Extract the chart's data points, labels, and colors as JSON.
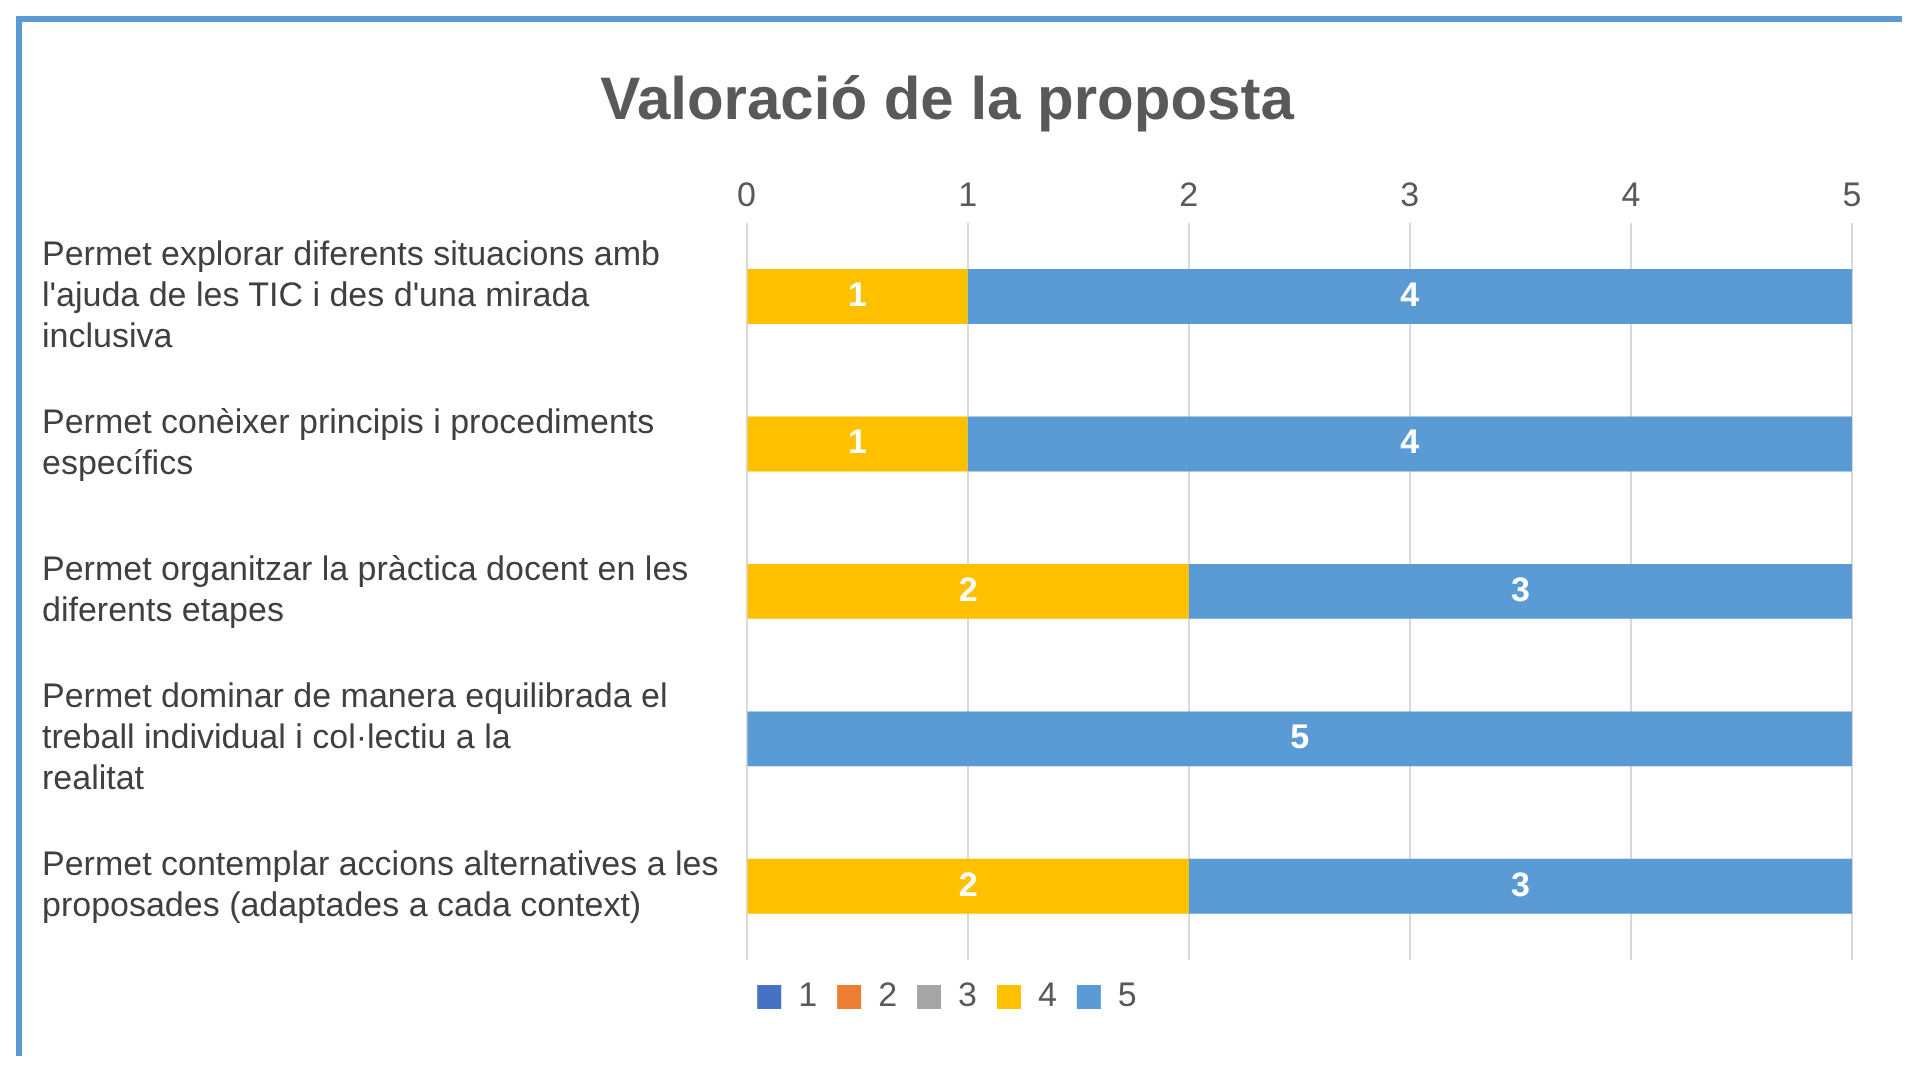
{
  "chart_data": {
    "type": "bar",
    "orientation": "horizontal",
    "stacked": true,
    "title": "Valoració de la proposta",
    "categories": [
      "Permet explorar diferents situacions amb l'ajuda de les TIC i des d'una mirada inclusiva",
      "Permet conèixer principis i procediments específics",
      "Permet organitzar la pràctica docent en les diferents etapes",
      "Permet dominar de manera equilibrada el treball individual i col·lectiu a la realitat",
      "Permet contemplar accions alternatives a les proposades (adaptades a cada context)"
    ],
    "series": [
      {
        "name": "1",
        "color": "#4472c4",
        "values": [
          null,
          null,
          null,
          null,
          null
        ]
      },
      {
        "name": "2",
        "color": "#ed7d31",
        "values": [
          null,
          null,
          null,
          null,
          null
        ]
      },
      {
        "name": "3",
        "color": "#a5a5a5",
        "values": [
          null,
          null,
          null,
          null,
          null
        ]
      },
      {
        "name": "4",
        "color": "#ffc000",
        "values": [
          1,
          1,
          2,
          null,
          2
        ]
      },
      {
        "name": "5",
        "color": "#5b9bd5",
        "values": [
          4,
          4,
          3,
          5,
          3
        ]
      }
    ],
    "xlim": [
      0,
      5
    ],
    "xticks": [
      0,
      1,
      2,
      3,
      4,
      5
    ],
    "grid": "x",
    "legend": "bottom",
    "data_labels": true
  }
}
